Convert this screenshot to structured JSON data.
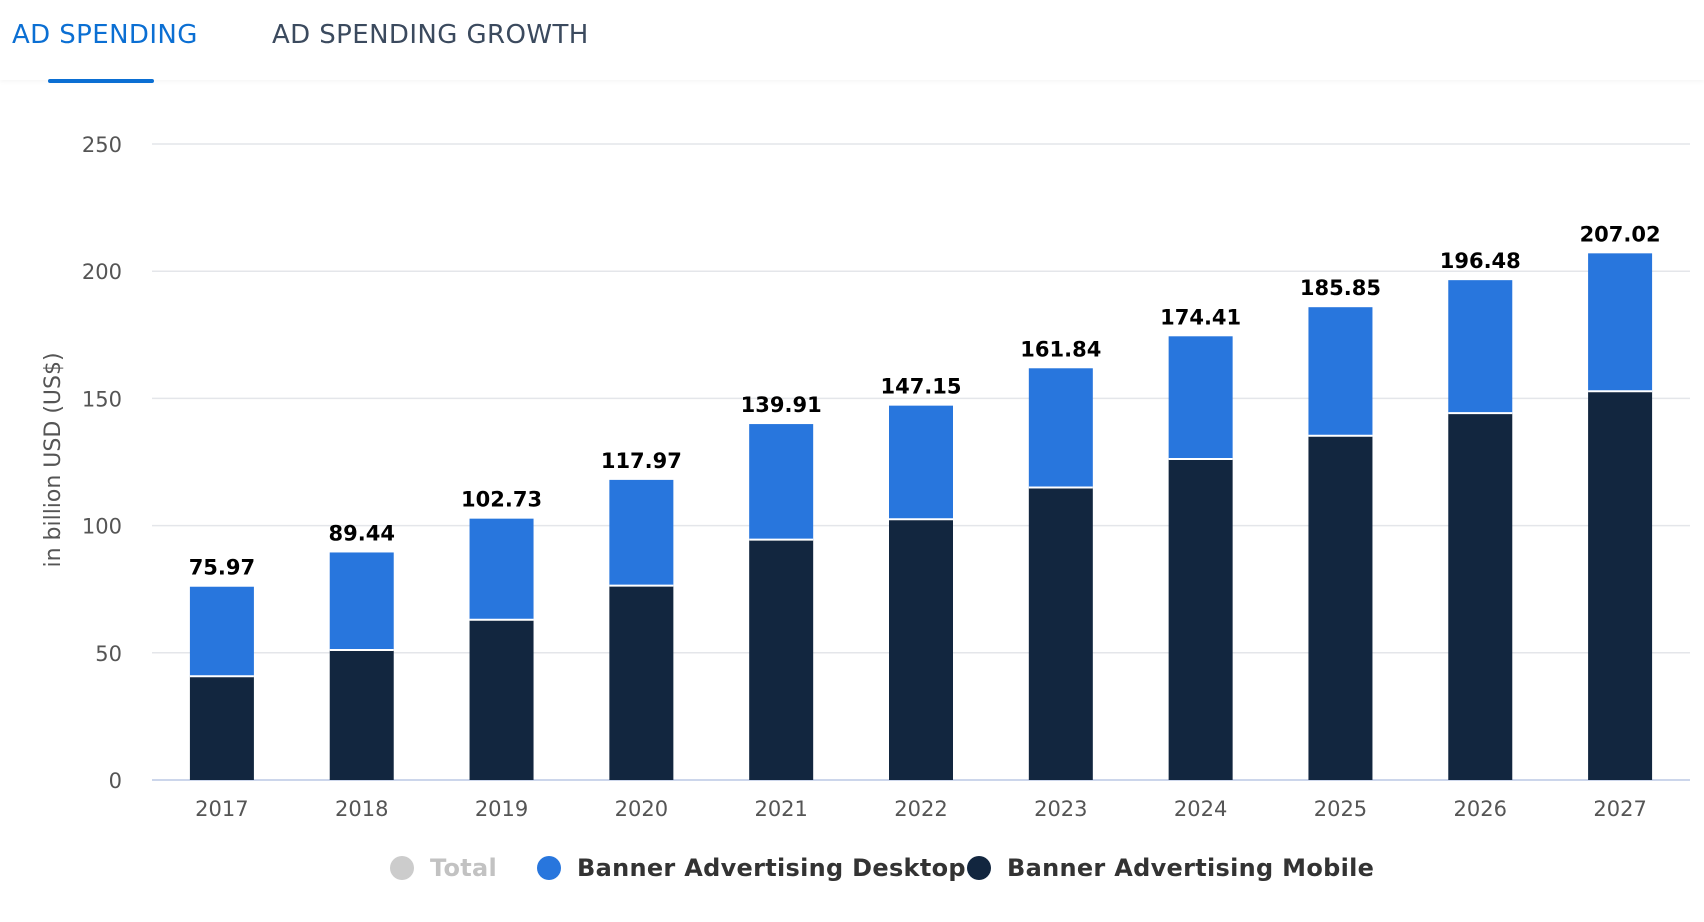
{
  "tabs": [
    {
      "label": "AD SPENDING",
      "active": true
    },
    {
      "label": "AD SPENDING GROWTH",
      "active": false
    }
  ],
  "colors": {
    "accent": "#0b6fd3",
    "desktop": "#2876dd",
    "mobile": "#12263f",
    "total": "#cccccc",
    "total_text": "#c2c2c2",
    "legend_text": "#333333",
    "axis_text": "#555555",
    "grid": "#e4e6ea",
    "baseline": "#ccd6eb"
  },
  "legend": [
    {
      "label": "Total",
      "disabled": true
    },
    {
      "label": "Banner Advertising Desktop",
      "disabled": false
    },
    {
      "label": "Banner Advertising Mobile",
      "disabled": false
    }
  ],
  "chart_data": {
    "type": "bar",
    "stacked": true,
    "ylabel": "in billion USD (US$)",
    "ylim": [
      0,
      250
    ],
    "yticks": [
      0,
      50,
      100,
      150,
      200,
      250
    ],
    "grid": true,
    "legend_position": "bottom",
    "categories": [
      "2017",
      "2018",
      "2019",
      "2020",
      "2021",
      "2022",
      "2023",
      "2024",
      "2025",
      "2026",
      "2027"
    ],
    "totals": [
      "75.97",
      "89.44",
      "102.73",
      "117.97",
      "139.91",
      "147.15",
      "161.84",
      "174.41",
      "185.85",
      "196.48",
      "207.02"
    ],
    "series": [
      {
        "name": "Banner Advertising Mobile",
        "values": [
          40.8,
          51.1,
          63.0,
          76.4,
          94.5,
          102.5,
          115.0,
          126.2,
          135.3,
          144.2,
          152.8
        ]
      },
      {
        "name": "Banner Advertising Desktop",
        "values": [
          35.17,
          38.34,
          39.73,
          41.57,
          45.41,
          44.65,
          46.84,
          48.21,
          50.55,
          52.28,
          54.22
        ]
      }
    ]
  }
}
